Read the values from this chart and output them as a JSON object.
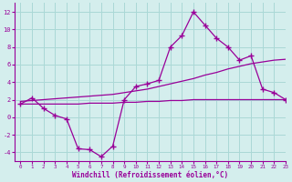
{
  "xlabel": "Windchill (Refroidissement éolien,°C)",
  "bg_color": "#d4eeed",
  "grid_color": "#aad8d6",
  "line_color": "#990099",
  "hours": [
    0,
    1,
    2,
    3,
    4,
    5,
    6,
    7,
    8,
    9,
    10,
    11,
    12,
    13,
    14,
    15,
    16,
    17,
    18,
    19,
    20,
    21,
    22,
    23
  ],
  "temp": [
    1.5,
    2.2,
    1.0,
    0.2,
    -0.2,
    -3.6,
    -3.7,
    -4.5,
    -3.3,
    2.0,
    3.5,
    3.8,
    4.2,
    8.0,
    9.3,
    12.0,
    10.5,
    9.0,
    8.0,
    6.5,
    7.0,
    3.2,
    2.8,
    2.0
  ],
  "line_diag": [
    1.8,
    1.9,
    2.0,
    2.1,
    2.2,
    2.3,
    2.4,
    2.5,
    2.6,
    2.8,
    3.0,
    3.2,
    3.5,
    3.8,
    4.1,
    4.4,
    4.8,
    5.1,
    5.5,
    5.8,
    6.1,
    6.3,
    6.5,
    6.6
  ],
  "line_flat": [
    1.5,
    1.5,
    1.5,
    1.5,
    1.5,
    1.5,
    1.6,
    1.6,
    1.6,
    1.7,
    1.7,
    1.8,
    1.8,
    1.9,
    1.9,
    2.0,
    2.0,
    2.0,
    2.0,
    2.0,
    2.0,
    2.0,
    2.0,
    2.0
  ],
  "ylim": [
    -5,
    13
  ],
  "xlim": [
    -0.5,
    23
  ],
  "yticks": [
    -4,
    -2,
    0,
    2,
    4,
    6,
    8,
    10,
    12
  ],
  "xticks": [
    0,
    1,
    2,
    3,
    4,
    5,
    6,
    7,
    8,
    9,
    10,
    11,
    12,
    13,
    14,
    15,
    16,
    17,
    18,
    19,
    20,
    21,
    22,
    23
  ]
}
